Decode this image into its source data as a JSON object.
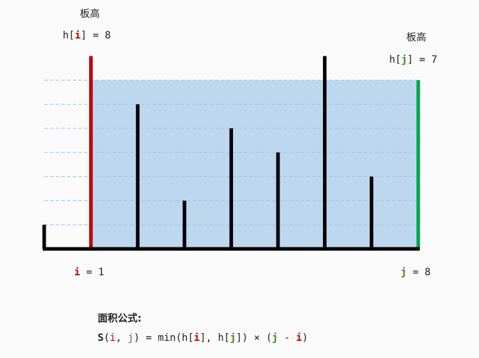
{
  "labels": {
    "left_title": "板高",
    "right_title": "板高",
    "left_h_prefix": "h[",
    "left_h_var": "i",
    "left_h_suffix": "] = 8",
    "right_h_prefix": "h[",
    "right_h_var": "j",
    "right_h_suffix": "] = 7",
    "i_var": "i",
    "i_value": " = 1",
    "j_var": "j",
    "j_value": " = 8"
  },
  "formula": {
    "title": "面积公式:",
    "s": "S",
    "open": "(",
    "i1": "i",
    "comma1": ", ",
    "j1": "j",
    "mid": ") = min(h[",
    "i2": "i",
    "mid2": "], h[",
    "j2": "j",
    "mid3": "]) × (",
    "j3": "j",
    "minus": " - ",
    "i3": "i",
    "close": ")"
  },
  "colors": {
    "water": "#bdd7ee",
    "left_wall": "#c00000",
    "right_wall": "#00a550",
    "bar": "#000000",
    "grid": "#9dc3e6"
  },
  "heights": [
    1,
    8,
    6,
    2,
    5,
    4,
    8,
    3,
    7
  ],
  "container": {
    "left_index": 1,
    "right_index": 8,
    "water_level": 7
  }
}
